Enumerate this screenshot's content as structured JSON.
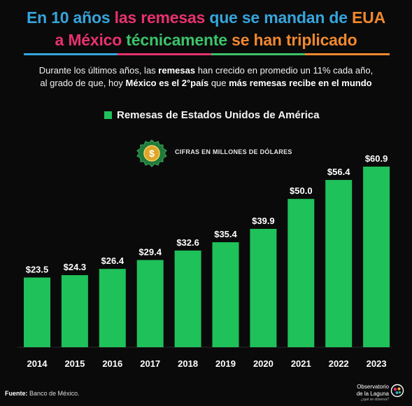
{
  "header": {
    "title_line1": [
      "En 10 años",
      "las remesas",
      "que se mandan de",
      "EUA"
    ],
    "title_line2": [
      "a",
      "México",
      "técnicamente",
      "se han triplicado"
    ],
    "subtitle_line1": [
      "Durante los últimos años, las ",
      "remesas",
      " han crecido en promedio un 11% cada año,"
    ],
    "subtitle_line2": [
      "al grado de que, hoy ",
      "México es el 2°país",
      " que ",
      "más remesas recibe en el mundo"
    ]
  },
  "legend_label": "Remesas de Estados Unidos de América",
  "unit_label": "CIFRAS EN MILLONES DE DÓLARES",
  "badge_symbol": "$",
  "source": {
    "label": "Fuente:",
    "text": " Banco de México."
  },
  "logo": {
    "line1": "Observatorio",
    "line2": "de la Laguna",
    "tagline": "¿qué se observa?"
  },
  "colors": {
    "background": "#0a0a0a",
    "bar": "#1fc15a",
    "blue": "#35a5dc",
    "pink": "#e8316e",
    "green": "#3cc36a",
    "orange": "#f0882f",
    "badge_gold": "#e0a528"
  },
  "chart_data": {
    "type": "bar",
    "categories": [
      "2014",
      "2015",
      "2016",
      "2017",
      "2018",
      "2019",
      "2020",
      "2021",
      "2022",
      "2023"
    ],
    "series": [
      {
        "name": "Remesas de Estados Unidos de América",
        "values": [
          23.5,
          24.3,
          26.4,
          29.4,
          32.6,
          35.4,
          39.9,
          50.0,
          56.4,
          60.9
        ]
      }
    ],
    "data_labels": [
      "$23.5",
      "$24.3",
      "$26.4",
      "$29.4",
      "$32.6",
      "$35.4",
      "$39.9",
      "$50.0",
      "$56.4",
      "$60.9"
    ],
    "ylim": [
      0,
      68
    ],
    "grid": false,
    "legend": "top"
  }
}
